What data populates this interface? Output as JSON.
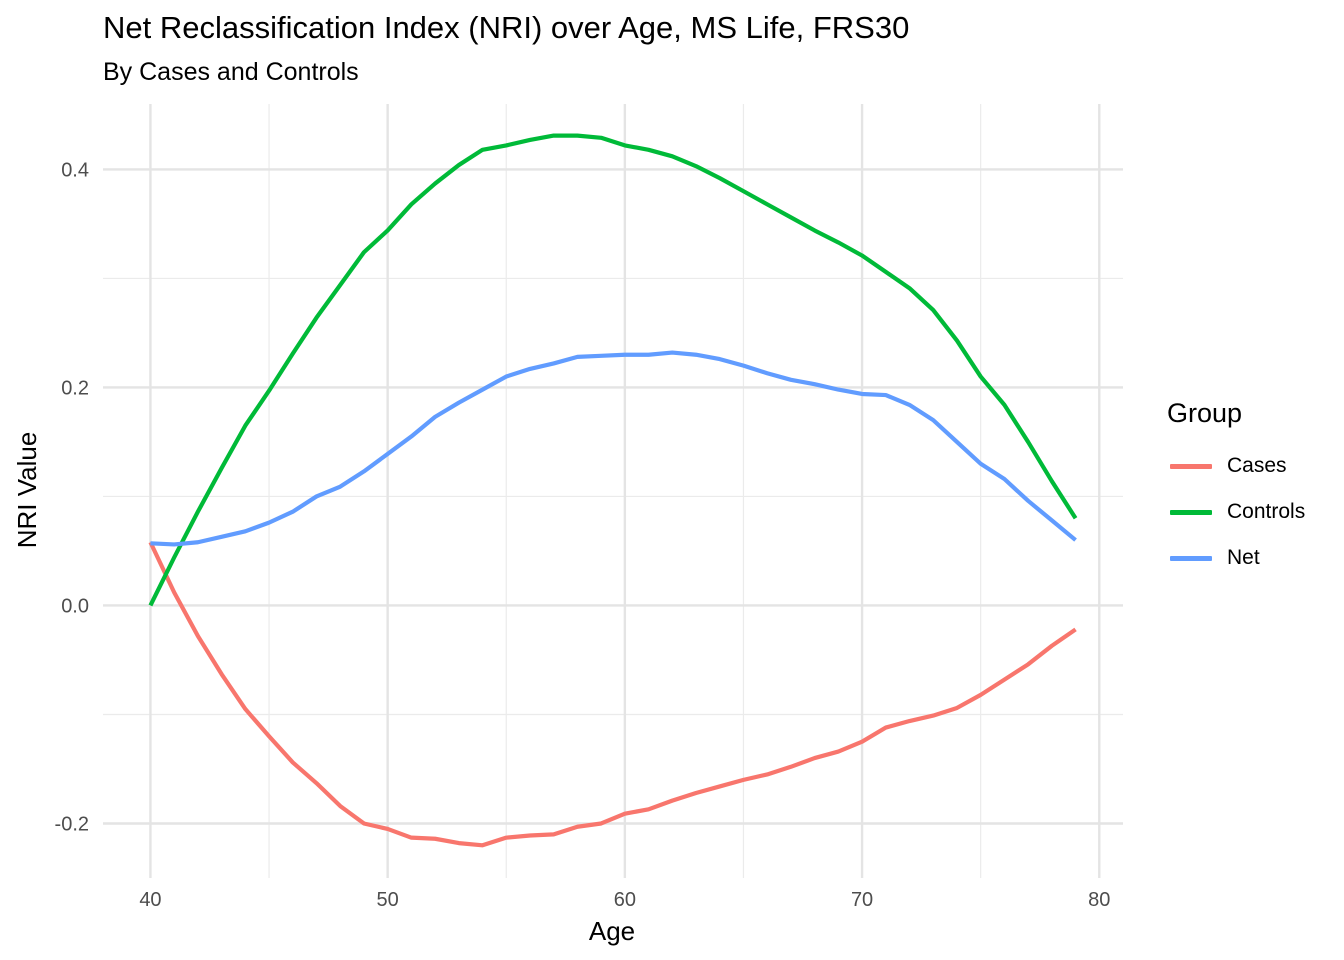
{
  "title": "Net Reclassification Index (NRI) over Age, MS Life, FRS30",
  "subtitle": "By Cases and Controls",
  "chart_data": {
    "type": "line",
    "title": "Net Reclassification Index (NRI) over Age, MS Life, FRS30",
    "subtitle": "By Cases and Controls",
    "xlabel": "Age",
    "ylabel": "NRI Value",
    "xlim": [
      38,
      81
    ],
    "ylim": [
      -0.25,
      0.46
    ],
    "xticks": [
      40,
      50,
      60,
      70,
      80
    ],
    "yticks": [
      -0.2,
      0.0,
      0.2,
      0.4
    ],
    "xtick_labels": [
      "40",
      "50",
      "60",
      "70",
      "80"
    ],
    "ytick_labels": [
      "-0.2",
      "0.0",
      "0.2",
      "0.4"
    ],
    "grid": true,
    "legend": {
      "title": "Group",
      "position": "right"
    },
    "x": [
      40,
      41,
      42,
      43,
      44,
      45,
      46,
      47,
      48,
      49,
      50,
      51,
      52,
      53,
      54,
      55,
      56,
      57,
      58,
      59,
      60,
      61,
      62,
      63,
      64,
      65,
      66,
      67,
      68,
      69,
      70,
      71,
      72,
      73,
      74,
      75,
      76,
      77,
      78,
      79
    ],
    "series": [
      {
        "name": "Cases",
        "color": "#F8766D",
        "values": [
          0.058,
          0.012,
          -0.028,
          -0.063,
          -0.095,
          -0.12,
          -0.144,
          -0.163,
          -0.184,
          -0.2,
          -0.205,
          -0.213,
          -0.214,
          -0.218,
          -0.22,
          -0.213,
          -0.211,
          -0.21,
          -0.203,
          -0.2,
          -0.191,
          -0.187,
          -0.179,
          -0.172,
          -0.166,
          -0.16,
          -0.155,
          -0.148,
          -0.14,
          -0.134,
          -0.125,
          -0.112,
          -0.106,
          -0.101,
          -0.094,
          -0.082,
          -0.068,
          -0.054,
          -0.037,
          -0.022
        ]
      },
      {
        "name": "Controls",
        "color": "#00BA38",
        "values": [
          0.0,
          0.044,
          0.086,
          0.126,
          0.165,
          0.197,
          0.231,
          0.264,
          0.294,
          0.324,
          0.344,
          0.368,
          0.387,
          0.404,
          0.418,
          0.422,
          0.427,
          0.431,
          0.431,
          0.429,
          0.422,
          0.418,
          0.412,
          0.403,
          0.392,
          0.38,
          0.368,
          0.356,
          0.344,
          0.333,
          0.321,
          0.306,
          0.291,
          0.271,
          0.243,
          0.21,
          0.184,
          0.15,
          0.114,
          0.08
        ]
      },
      {
        "name": "Net",
        "color": "#619CFF",
        "values": [
          0.057,
          0.056,
          0.058,
          0.063,
          0.068,
          0.076,
          0.086,
          0.1,
          0.109,
          0.123,
          0.139,
          0.155,
          0.173,
          0.186,
          0.198,
          0.21,
          0.217,
          0.222,
          0.228,
          0.229,
          0.23,
          0.23,
          0.232,
          0.23,
          0.226,
          0.22,
          0.213,
          0.207,
          0.203,
          0.198,
          0.194,
          0.193,
          0.184,
          0.17,
          0.15,
          0.13,
          0.116,
          0.096,
          0.078,
          0.06
        ]
      }
    ]
  }
}
